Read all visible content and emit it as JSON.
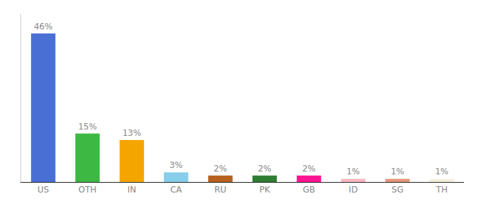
{
  "chart_data": {
    "type": "bar",
    "categories": [
      "US",
      "OTH",
      "IN",
      "CA",
      "RU",
      "PK",
      "GB",
      "ID",
      "SG",
      "TH"
    ],
    "values": [
      46,
      15,
      13,
      3,
      2,
      2,
      2,
      1,
      1,
      1
    ],
    "value_labels": [
      "46%",
      "15%",
      "13%",
      "3%",
      "2%",
      "2%",
      "2%",
      "1%",
      "1%",
      "1%"
    ],
    "data_labels": true,
    "colors": [
      "#4a6fd4",
      "#3cb843",
      "#f5a500",
      "#87ceeb",
      "#b8601e",
      "#2e7d32",
      "#ff1493",
      "#ffb6c1",
      "#e8967a",
      "#f5f0dc"
    ],
    "ylim": [
      0,
      52
    ],
    "tick_labels": "x",
    "grid": false
  }
}
